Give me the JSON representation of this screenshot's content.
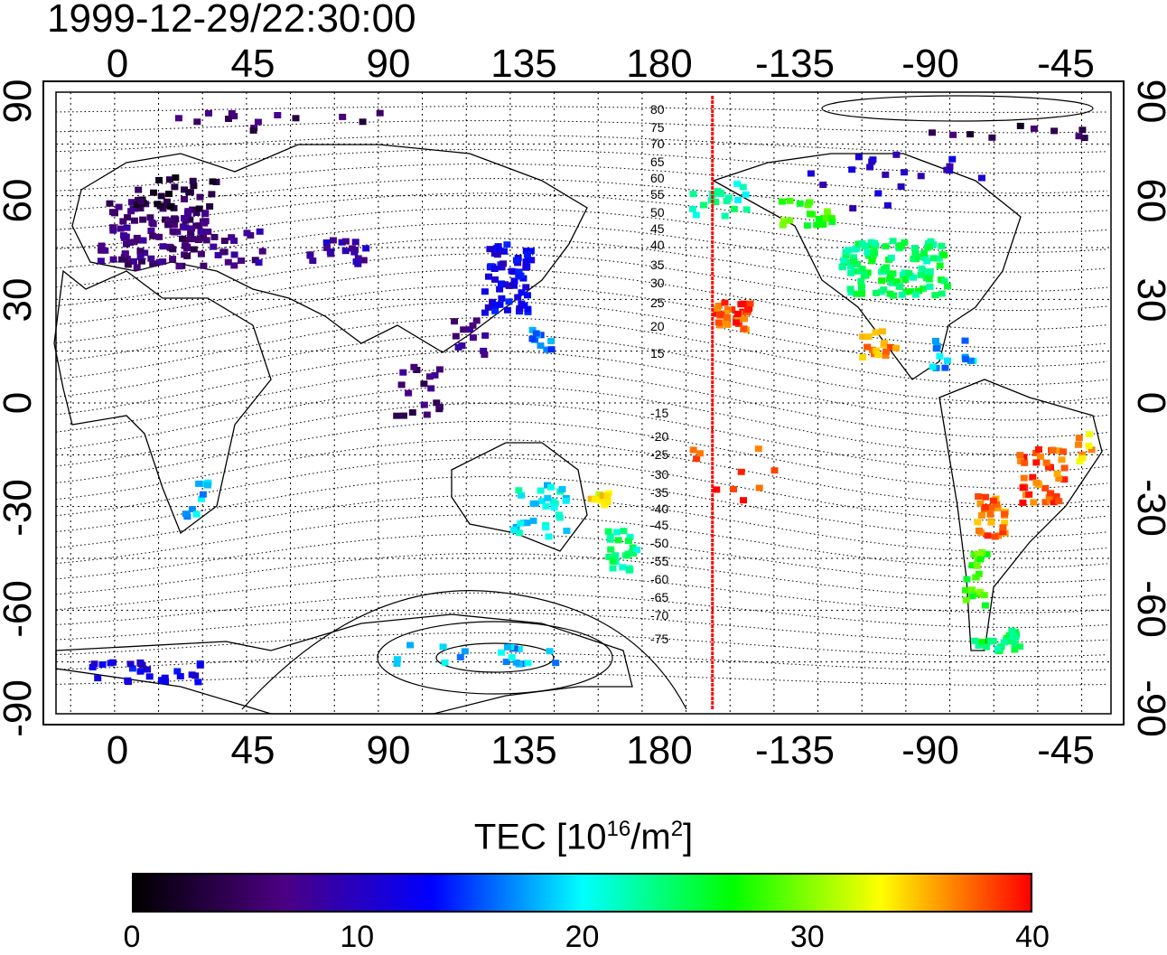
{
  "title": "1999-12-29/22:30:00",
  "map": {
    "top_ticks": [
      "0",
      "45",
      "90",
      "135",
      "180",
      "-135",
      "-90",
      "-45"
    ],
    "bottom_ticks": [
      "0",
      "45",
      "90",
      "135",
      "180",
      "-135",
      "-90",
      "-45"
    ],
    "left_ticks": [
      "90",
      "60",
      "30",
      "0",
      "-30",
      "-60",
      "-90"
    ],
    "right_ticks": [
      "90",
      "60",
      "30",
      "0",
      "-30",
      "-60",
      "-90"
    ],
    "terminator_longitude": -156,
    "contour_labels": [
      "80",
      "75",
      "70",
      "65",
      "60",
      "55",
      "50",
      "45",
      "40",
      "35",
      "30",
      "25",
      "20",
      "15",
      "-15",
      "-20",
      "-25",
      "-30",
      "-35",
      "-40",
      "-45",
      "-50",
      "-55",
      "-60",
      "-65",
      "-70",
      "-75"
    ]
  },
  "colorbar": {
    "title_prefix": "TEC  [10",
    "title_exp": "16",
    "title_mid": "/m",
    "title_exp2": "2",
    "title_suffix": "]",
    "ticks": [
      "0",
      "10",
      "20",
      "30",
      "40"
    ],
    "range": [
      0,
      40
    ],
    "colors": [
      "#000000",
      "#4b0082",
      "#0000ff",
      "#00ffff",
      "#00ff00",
      "#ffff00",
      "#ff0000"
    ]
  },
  "clusters": [
    {
      "lon": 12,
      "lat": 50,
      "spread_lon": 18,
      "spread_lat": 10,
      "tec": 6,
      "n": 110
    },
    {
      "lon": 20,
      "lat": 62,
      "spread_lon": 14,
      "spread_lat": 5,
      "tec": 3,
      "n": 30
    },
    {
      "lon": 40,
      "lat": 45,
      "spread_lon": 10,
      "spread_lat": 6,
      "tec": 7,
      "n": 20
    },
    {
      "lon": 75,
      "lat": 45,
      "spread_lon": 10,
      "spread_lat": 4,
      "tec": 9,
      "n": 20
    },
    {
      "lon": 133,
      "lat": 37,
      "spread_lon": 8,
      "spread_lat": 10,
      "tec": 12,
      "n": 60
    },
    {
      "lon": 120,
      "lat": 20,
      "spread_lon": 6,
      "spread_lat": 6,
      "tec": 8,
      "n": 12
    },
    {
      "lon": 105,
      "lat": 5,
      "spread_lon": 10,
      "spread_lat": 8,
      "tec": 6,
      "n": 18
    },
    {
      "lon": 145,
      "lat": 20,
      "spread_lon": 4,
      "spread_lat": 6,
      "tec": 16,
      "n": 10
    },
    {
      "lon": -150,
      "lat": 26,
      "spread_lon": 6,
      "spread_lat": 4,
      "tec": 38,
      "n": 30
    },
    {
      "lon": -155,
      "lat": 60,
      "spread_lon": 10,
      "spread_lat": 5,
      "tec": 22,
      "n": 20
    },
    {
      "lon": -125,
      "lat": 55,
      "spread_lon": 10,
      "spread_lat": 5,
      "tec": 28,
      "n": 20
    },
    {
      "lon": -95,
      "lat": 40,
      "spread_lon": 18,
      "spread_lat": 8,
      "tec": 24,
      "n": 120
    },
    {
      "lon": -95,
      "lat": 65,
      "spread_lon": 30,
      "spread_lat": 8,
      "tec": 10,
      "n": 20
    },
    {
      "lon": -100,
      "lat": 18,
      "spread_lon": 6,
      "spread_lat": 4,
      "tec": 36,
      "n": 16
    },
    {
      "lon": -75,
      "lat": 15,
      "spread_lon": 8,
      "spread_lat": 5,
      "tec": 18,
      "n": 14
    },
    {
      "lon": -45,
      "lat": -20,
      "spread_lon": 8,
      "spread_lat": 8,
      "tec": 38,
      "n": 40
    },
    {
      "lon": -62,
      "lat": -32,
      "spread_lon": 5,
      "spread_lat": 6,
      "tec": 37,
      "n": 30
    },
    {
      "lon": -67,
      "lat": -50,
      "spread_lon": 4,
      "spread_lat": 8,
      "tec": 28,
      "n": 20
    },
    {
      "lon": -60,
      "lat": -68,
      "spread_lon": 8,
      "spread_lat": 3,
      "tec": 24,
      "n": 30
    },
    {
      "lon": 145,
      "lat": -30,
      "spread_lon": 10,
      "spread_lat": 8,
      "tec": 20,
      "n": 30
    },
    {
      "lon": 172,
      "lat": -42,
      "spread_lon": 5,
      "spread_lat": 6,
      "tec": 23,
      "n": 26
    },
    {
      "lon": 165,
      "lat": -27,
      "spread_lon": 4,
      "spread_lat": 2,
      "tec": 33,
      "n": 10
    },
    {
      "lon": 28,
      "lat": -27,
      "spread_lon": 5,
      "spread_lat": 5,
      "tec": 18,
      "n": 10
    },
    {
      "lon": -30,
      "lat": -12,
      "spread_lon": 3,
      "spread_lat": 4,
      "tec": 35,
      "n": 8
    },
    {
      "lon": 10,
      "lat": -77,
      "spread_lon": 20,
      "spread_lat": 3,
      "tec": 12,
      "n": 25
    },
    {
      "lon": 120,
      "lat": -72,
      "spread_lon": 30,
      "spread_lat": 3,
      "tec": 18,
      "n": 20
    },
    {
      "lon": -150,
      "lat": -20,
      "spread_lon": 15,
      "spread_lat": 8,
      "tec": 39,
      "n": 10
    },
    {
      "lon": 60,
      "lat": 82,
      "spread_lon": 40,
      "spread_lat": 3,
      "tec": 5,
      "n": 14
    },
    {
      "lon": -60,
      "lat": 80,
      "spread_lon": 30,
      "spread_lat": 3,
      "tec": 4,
      "n": 10
    }
  ]
}
